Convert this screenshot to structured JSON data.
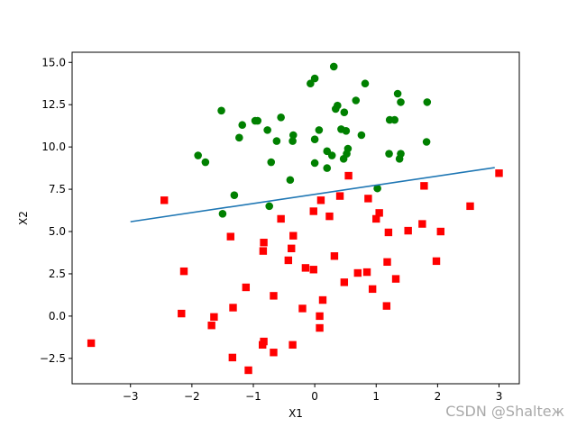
{
  "chart_data": {
    "type": "scatter",
    "xlabel": "X1",
    "ylabel": "X2",
    "xlim": [
      -3.95,
      3.33
    ],
    "ylim": [
      -4.0,
      15.6
    ],
    "xticks": [
      -3,
      -2,
      -1,
      0,
      1,
      2,
      3
    ],
    "yticks": [
      -2.5,
      0.0,
      2.5,
      5.0,
      7.5,
      10.0,
      12.5,
      15.0
    ],
    "xtick_labels": [
      "−3",
      "−2",
      "−1",
      "0",
      "1",
      "2",
      "3"
    ],
    "ytick_labels": [
      "−2.5",
      "0.0",
      "2.5",
      "5.0",
      "7.5",
      "10.0",
      "12.5",
      "15.0"
    ],
    "grid": false,
    "colors": {
      "class0": "#008000",
      "class1": "#ff0000",
      "line": "#1f77b4"
    },
    "series": [
      {
        "marker": "circle",
        "color": "#008000",
        "points": [
          [
            0.31,
            14.75
          ],
          [
            0.0,
            14.05
          ],
          [
            -0.07,
            13.75
          ],
          [
            0.82,
            13.75
          ],
          [
            1.35,
            13.15
          ],
          [
            0.67,
            12.75
          ],
          [
            1.4,
            12.65
          ],
          [
            1.83,
            12.65
          ],
          [
            0.37,
            12.45
          ],
          [
            0.34,
            12.25
          ],
          [
            -1.52,
            12.15
          ],
          [
            0.48,
            12.05
          ],
          [
            -0.55,
            11.75
          ],
          [
            -0.93,
            11.55
          ],
          [
            -0.97,
            11.55
          ],
          [
            1.22,
            11.6
          ],
          [
            1.3,
            11.6
          ],
          [
            -1.18,
            11.3
          ],
          [
            0.43,
            11.05
          ],
          [
            0.51,
            10.95
          ],
          [
            0.07,
            11.0
          ],
          [
            -0.77,
            11.0
          ],
          [
            -0.35,
            10.7
          ],
          [
            0.76,
            10.7
          ],
          [
            -1.23,
            10.55
          ],
          [
            0.0,
            10.45
          ],
          [
            -0.62,
            10.35
          ],
          [
            -0.36,
            10.35
          ],
          [
            1.82,
            10.3
          ],
          [
            0.54,
            9.9
          ],
          [
            0.2,
            9.75
          ],
          [
            0.52,
            9.6
          ],
          [
            1.21,
            9.6
          ],
          [
            1.4,
            9.6
          ],
          [
            0.28,
            9.5
          ],
          [
            -1.9,
            9.5
          ],
          [
            0.47,
            9.3
          ],
          [
            1.38,
            9.3
          ],
          [
            -1.78,
            9.1
          ],
          [
            -0.71,
            9.1
          ],
          [
            0.0,
            9.05
          ],
          [
            0.2,
            8.75
          ],
          [
            -0.4,
            8.05
          ],
          [
            1.02,
            7.55
          ],
          [
            -1.31,
            7.15
          ],
          [
            -0.74,
            6.5
          ],
          [
            -1.5,
            6.05
          ]
        ]
      },
      {
        "marker": "square",
        "color": "#ff0000",
        "points": [
          [
            3.0,
            8.45
          ],
          [
            0.55,
            8.3
          ],
          [
            1.78,
            7.7
          ],
          [
            0.41,
            7.1
          ],
          [
            0.87,
            6.95
          ],
          [
            -2.45,
            6.85
          ],
          [
            0.1,
            6.85
          ],
          [
            2.53,
            6.5
          ],
          [
            -0.02,
            6.2
          ],
          [
            1.05,
            6.1
          ],
          [
            0.24,
            5.9
          ],
          [
            1.0,
            5.75
          ],
          [
            -0.55,
            5.75
          ],
          [
            1.75,
            5.45
          ],
          [
            1.52,
            5.05
          ],
          [
            2.05,
            5.0
          ],
          [
            1.2,
            4.95
          ],
          [
            -1.37,
            4.7
          ],
          [
            -0.35,
            4.75
          ],
          [
            -0.83,
            4.35
          ],
          [
            -0.84,
            3.85
          ],
          [
            -0.38,
            4.0
          ],
          [
            0.32,
            3.55
          ],
          [
            -0.43,
            3.3
          ],
          [
            1.98,
            3.25
          ],
          [
            1.18,
            3.2
          ],
          [
            -0.15,
            2.85
          ],
          [
            -0.02,
            2.75
          ],
          [
            -2.13,
            2.65
          ],
          [
            0.85,
            2.6
          ],
          [
            0.7,
            2.55
          ],
          [
            1.32,
            2.2
          ],
          [
            0.48,
            2.0
          ],
          [
            -1.12,
            1.7
          ],
          [
            0.94,
            1.6
          ],
          [
            -0.67,
            1.2
          ],
          [
            0.13,
            0.95
          ],
          [
            1.17,
            0.6
          ],
          [
            -1.33,
            0.5
          ],
          [
            -0.2,
            0.45
          ],
          [
            -2.17,
            0.15
          ],
          [
            0.08,
            0.0
          ],
          [
            -1.64,
            -0.05
          ],
          [
            -1.68,
            -0.55
          ],
          [
            0.08,
            -0.7
          ],
          [
            -0.83,
            -1.5
          ],
          [
            -0.85,
            -1.7
          ],
          [
            -3.64,
            -1.6
          ],
          [
            -0.36,
            -1.7
          ],
          [
            -0.67,
            -2.15
          ],
          [
            -1.34,
            -2.45
          ],
          [
            -1.08,
            -3.2
          ]
        ]
      }
    ],
    "line": {
      "x": [
        -3.0,
        2.93
      ],
      "y": [
        5.58,
        8.78
      ]
    }
  },
  "watermark": "CSDN @Shaltеж"
}
